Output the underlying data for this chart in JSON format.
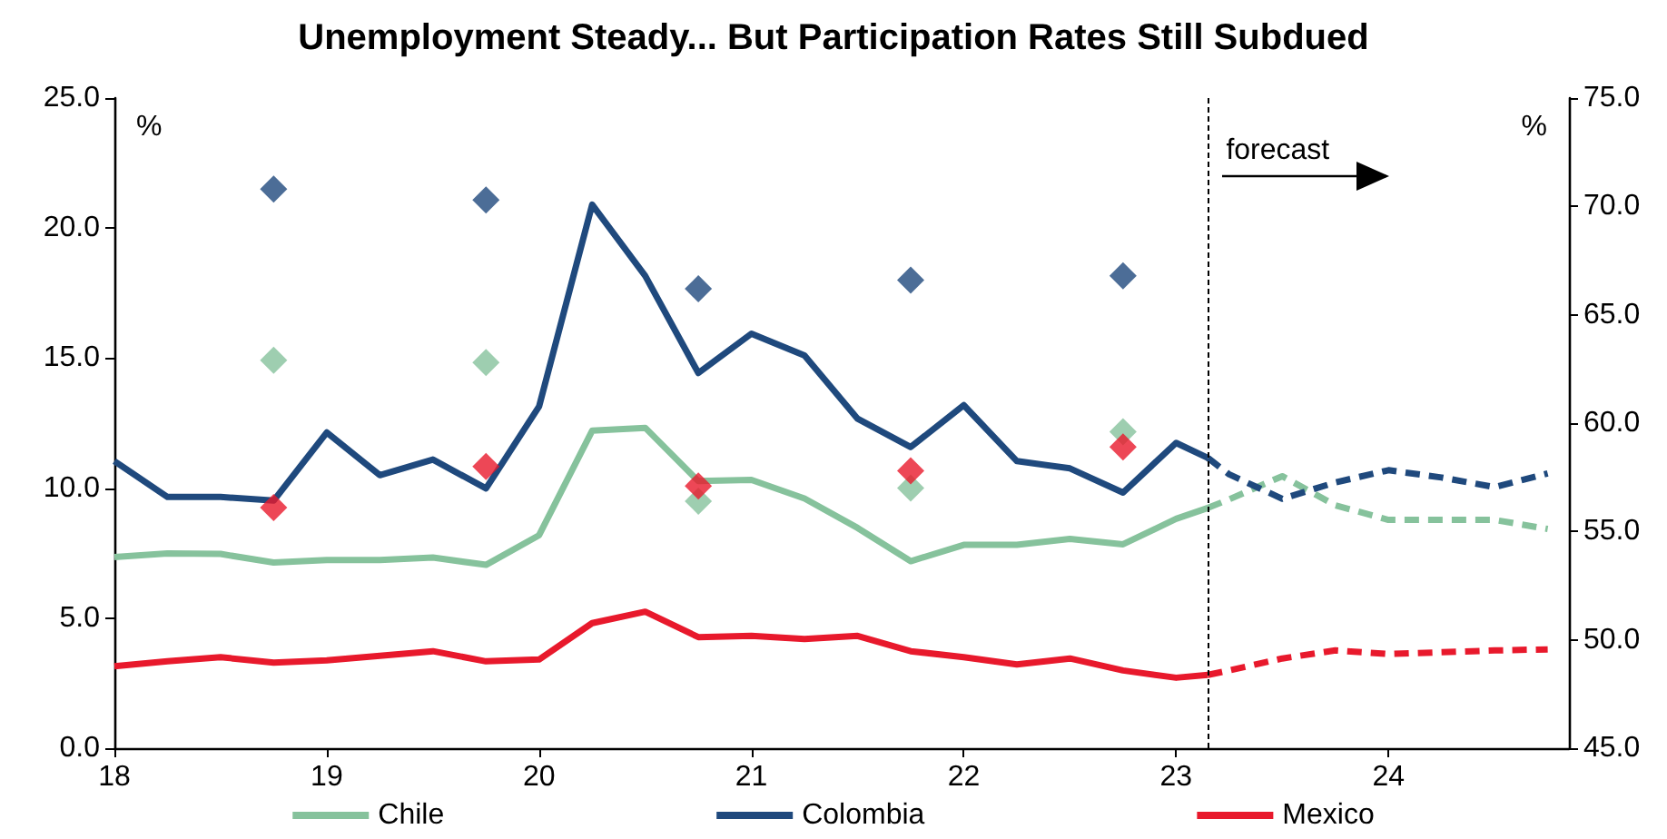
{
  "chart_data": {
    "type": "line",
    "title": "Unemployment Steady... But Participation Rates Still Subdued",
    "ylabel": "%",
    "y2label": "%",
    "xlim": [
      18,
      24.85
    ],
    "xticks": [
      18,
      19,
      20,
      21,
      22,
      23,
      24
    ],
    "ylim": [
      0,
      25
    ],
    "yticks": [
      {
        "value": 0,
        "label": "0.0"
      },
      {
        "value": 5,
        "label": "5.0"
      },
      {
        "value": 10,
        "label": "10.0"
      },
      {
        "value": 15,
        "label": "15.0"
      },
      {
        "value": 20,
        "label": "20.0"
      },
      {
        "value": 25,
        "label": "25.0"
      }
    ],
    "y2lim": [
      45,
      75
    ],
    "y2ticks": [
      {
        "value": 45,
        "label": "45.0"
      },
      {
        "value": 50,
        "label": "50.0"
      },
      {
        "value": 55,
        "label": "55.0"
      },
      {
        "value": 60,
        "label": "60.0"
      },
      {
        "value": 65,
        "label": "65.0"
      },
      {
        "value": 70,
        "label": "70.0"
      },
      {
        "value": 75,
        "label": "75.0"
      }
    ],
    "legend": "bottom",
    "marker": "none",
    "line_style": "solid",
    "ref_lines": [
      {
        "axis": "x",
        "value": 23.15,
        "label": "forecast",
        "color": "#000000",
        "line_style": "dashed"
      }
    ],
    "series": [
      {
        "name": "Chile",
        "color": "#86c29c",
        "x": [
          18,
          18.25,
          18.5,
          18.75,
          19,
          19.25,
          19.5,
          19.75,
          20,
          20.25,
          20.5,
          20.75,
          21,
          21.25,
          21.5,
          21.75,
          22,
          22.25,
          22.5,
          22.75,
          23,
          23.15
        ],
        "values": [
          7.35,
          7.49,
          7.47,
          7.14,
          7.24,
          7.24,
          7.33,
          7.05,
          8.19,
          12.21,
          12.32,
          10.27,
          10.32,
          9.6,
          8.47,
          7.19,
          7.82,
          7.82,
          8.05,
          7.84,
          8.82,
          9.24
        ]
      },
      {
        "name": "Colombia",
        "color": "#1f497d",
        "x": [
          18,
          18.25,
          18.5,
          18.75,
          19,
          19.25,
          19.5,
          19.75,
          20,
          20.25,
          20.5,
          20.75,
          21,
          21.25,
          21.5,
          21.75,
          22,
          22.25,
          22.5,
          22.75,
          23,
          23.15
        ],
        "values": [
          11.04,
          9.66,
          9.66,
          9.52,
          12.14,
          10.5,
          11.1,
          9.99,
          13.14,
          20.9,
          18.16,
          14.43,
          15.94,
          15.1,
          12.67,
          11.58,
          13.19,
          11.04,
          10.76,
          9.83,
          11.74,
          11.16
        ]
      },
      {
        "name": "Mexico",
        "color": "#e8192c",
        "x": [
          18,
          18.25,
          18.5,
          18.75,
          19,
          19.25,
          19.5,
          19.75,
          20,
          20.25,
          20.5,
          20.75,
          21,
          21.25,
          21.5,
          21.75,
          22,
          22.25,
          22.5,
          22.75,
          23,
          23.15
        ],
        "values": [
          3.15,
          3.34,
          3.5,
          3.29,
          3.38,
          3.55,
          3.73,
          3.34,
          3.41,
          4.81,
          5.25,
          4.27,
          4.32,
          4.2,
          4.32,
          3.73,
          3.5,
          3.22,
          3.45,
          2.99,
          2.71,
          2.82
        ]
      },
      {
        "color": "#86c29c",
        "line_style": "dashed",
        "x": [
          23.15,
          23.25,
          23.5,
          23.75,
          24,
          24.25,
          24.5,
          24.75
        ],
        "values": [
          9.24,
          9.57,
          10.46,
          9.34,
          8.78,
          8.78,
          8.78,
          8.43
        ]
      },
      {
        "color": "#1f497d",
        "line_style": "dashed",
        "x": [
          23.15,
          23.25,
          23.5,
          23.75,
          24,
          24.25,
          24.5,
          24.75
        ],
        "values": [
          11.16,
          10.53,
          9.59,
          10.22,
          10.69,
          10.41,
          10.04,
          10.57
        ]
      },
      {
        "color": "#e8192c",
        "line_style": "dashed",
        "x": [
          23.15,
          23.25,
          23.5,
          23.75,
          24,
          24.25,
          24.5,
          24.75
        ],
        "values": [
          2.82,
          2.99,
          3.45,
          3.76,
          3.62,
          3.69,
          3.76,
          3.8
        ]
      },
      {
        "type": "scatter",
        "axis": "y2",
        "marker": "diamond",
        "color": "#86c29c",
        "x": [
          18.75,
          19.75,
          20.75,
          21.75,
          22.75
        ],
        "values": [
          62.9,
          62.8,
          56.4,
          57.0,
          59.6
        ]
      },
      {
        "type": "scatter",
        "axis": "y2",
        "marker": "diamond",
        "color": "#1f497d",
        "x": [
          18.75,
          19.75,
          20.75,
          21.75,
          22.75
        ],
        "values": [
          70.8,
          70.3,
          66.2,
          66.6,
          66.8
        ]
      },
      {
        "type": "scatter",
        "axis": "y2",
        "marker": "diamond",
        "color": "#e8192c",
        "x": [
          18.75,
          19.75,
          20.75,
          21.75,
          22.75
        ],
        "values": [
          56.1,
          58.0,
          57.1,
          57.8,
          58.9
        ]
      }
    ]
  }
}
